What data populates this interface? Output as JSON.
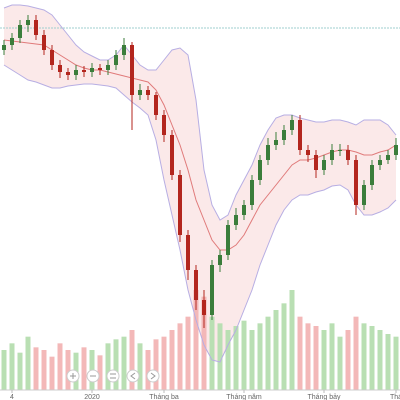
{
  "chart_data": {
    "type": "candlestick",
    "categories": [
      null,
      "4",
      null,
      null,
      null,
      null,
      null,
      null,
      null,
      null,
      null,
      "2020",
      null,
      null,
      null,
      null,
      null,
      null,
      null,
      null,
      "Tháng ba",
      null,
      null,
      null,
      null,
      null,
      null,
      null,
      null,
      null,
      "Tháng năm",
      null,
      null,
      null,
      null,
      null,
      null,
      null,
      null,
      null,
      "Tháng bảy",
      null,
      null,
      null,
      null,
      null,
      null,
      null,
      null,
      "Thá"
    ],
    "open": [
      350,
      355,
      362,
      375,
      380,
      365,
      350,
      335,
      328,
      325,
      330,
      328,
      332,
      330,
      335,
      345,
      355,
      305,
      310,
      305,
      285,
      265,
      225,
      165,
      130,
      100,
      85,
      135,
      145,
      175,
      185,
      195,
      220,
      240,
      255,
      260,
      270,
      280,
      250,
      245,
      230,
      240,
      250,
      250,
      240,
      195,
      215,
      235,
      240,
      245
    ],
    "close": [
      355,
      362,
      375,
      380,
      365,
      350,
      335,
      328,
      325,
      330,
      328,
      332,
      330,
      335,
      345,
      355,
      305,
      310,
      305,
      285,
      265,
      225,
      165,
      130,
      100,
      85,
      135,
      145,
      175,
      185,
      195,
      220,
      240,
      255,
      260,
      270,
      280,
      250,
      245,
      230,
      240,
      250,
      250,
      240,
      195,
      215,
      235,
      240,
      245,
      255
    ],
    "high": [
      360,
      367,
      380,
      385,
      385,
      370,
      355,
      340,
      332,
      335,
      334,
      337,
      336,
      340,
      350,
      362,
      358,
      316,
      314,
      308,
      290,
      270,
      230,
      170,
      135,
      110,
      140,
      150,
      180,
      192,
      200,
      225,
      245,
      262,
      268,
      275,
      285,
      285,
      255,
      250,
      245,
      256,
      256,
      255,
      245,
      220,
      240,
      245,
      250,
      262
    ],
    "low": [
      345,
      350,
      357,
      368,
      360,
      345,
      330,
      322,
      320,
      320,
      323,
      323,
      325,
      325,
      330,
      340,
      270,
      300,
      300,
      280,
      258,
      220,
      158,
      120,
      90,
      72,
      80,
      128,
      140,
      170,
      180,
      190,
      215,
      235,
      250,
      255,
      265,
      245,
      238,
      222,
      225,
      235,
      244,
      235,
      185,
      190,
      210,
      230,
      236,
      240
    ],
    "bands": {
      "upper": [
        392,
        395,
        395,
        394,
        392,
        390,
        385,
        375,
        365,
        355,
        348,
        344,
        340,
        340,
        345,
        355,
        345,
        335,
        330,
        330,
        340,
        350,
        352,
        345,
        300,
        230,
        195,
        180,
        185,
        205,
        220,
        235,
        255,
        270,
        282,
        285,
        285,
        282,
        280,
        278,
        278,
        280,
        280,
        278,
        275,
        280,
        280,
        280,
        275,
        265
      ],
      "middle": [
        360,
        359,
        358,
        357,
        356,
        355,
        350,
        345,
        340,
        335,
        332,
        330,
        330,
        328,
        326,
        324,
        322,
        320,
        318,
        310,
        295,
        275,
        255,
        230,
        200,
        180,
        160,
        150,
        150,
        155,
        165,
        180,
        195,
        205,
        215,
        225,
        235,
        240,
        240,
        242,
        245,
        248,
        250,
        250,
        248,
        245,
        245,
        248,
        250,
        255
      ],
      "lower": [
        335,
        330,
        325,
        320,
        318,
        315,
        312,
        312,
        314,
        315,
        316,
        316,
        315,
        314,
        312,
        305,
        298,
        292,
        285,
        260,
        220,
        185,
        150,
        110,
        80,
        55,
        40,
        38,
        55,
        70,
        90,
        110,
        135,
        155,
        175,
        190,
        200,
        205,
        205,
        208,
        210,
        214,
        215,
        210,
        195,
        185,
        185,
        188,
        192,
        200
      ]
    },
    "volume": [
      30,
      35,
      28,
      40,
      32,
      30,
      25,
      35,
      30,
      28,
      32,
      30,
      26,
      35,
      38,
      40,
      45,
      35,
      30,
      38,
      40,
      45,
      50,
      55,
      75,
      70,
      55,
      50,
      45,
      48,
      52,
      45,
      50,
      55,
      60,
      65,
      75,
      55,
      50,
      48,
      45,
      50,
      40,
      45,
      55,
      50,
      48,
      45,
      42,
      40
    ],
    "reference_line": 372,
    "ylim": [
      0,
      400
    ],
    "y2lim": [
      0,
      300
    ],
    "colors": {
      "up": "#3b7d3b",
      "down": "#b3261e",
      "volume_up": "#b9dfb3",
      "volume_down": "#f3b8b8",
      "band_line": "#b7aee3",
      "band_fill": "#fbe9e9",
      "middle": "#e07a7a",
      "reference": "#9fcfcf"
    }
  }
}
